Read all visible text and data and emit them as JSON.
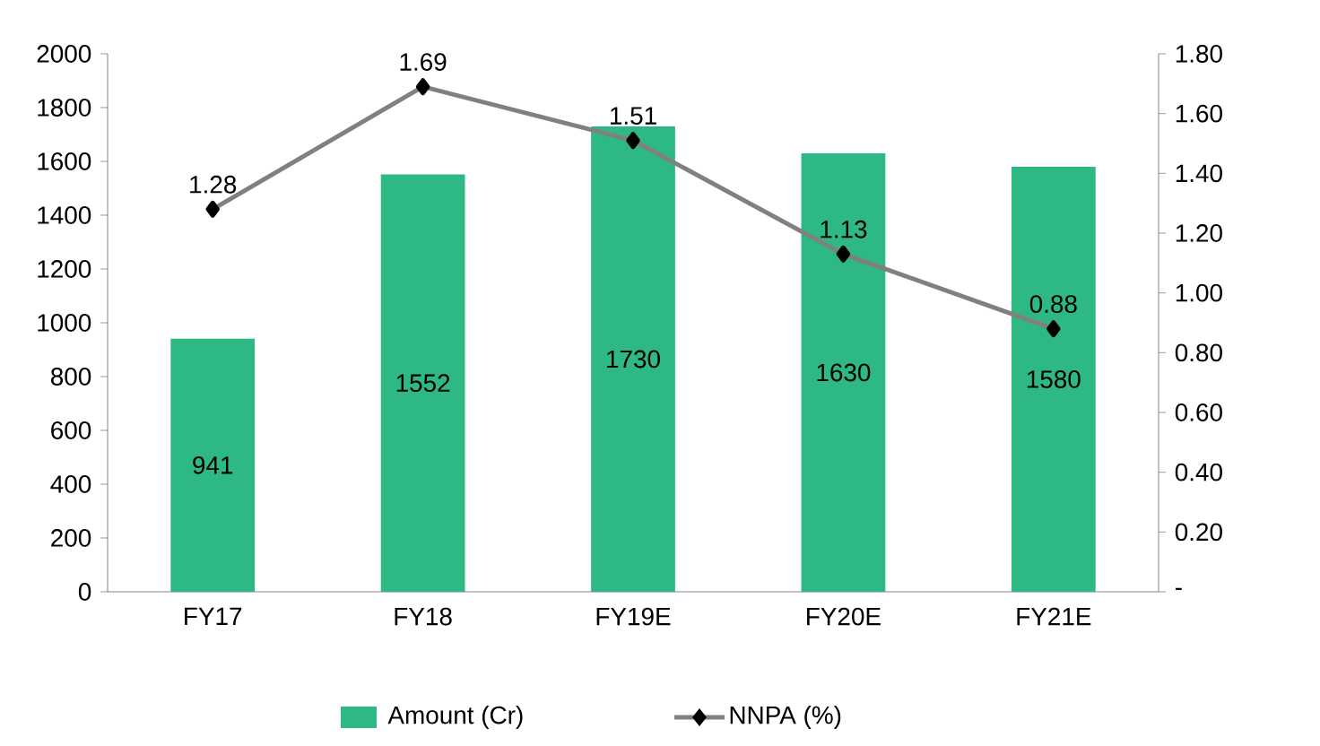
{
  "chart_data": {
    "type": "bar",
    "categories": [
      "FY17",
      "FY18",
      "FY19E",
      "FY20E",
      "FY21E"
    ],
    "series": [
      {
        "name": "Amount (Cr)",
        "color": "#2eb883",
        "values": [
          941,
          1552,
          1730,
          1630,
          1580
        ]
      },
      {
        "name": "NNPA (%)",
        "type": "line",
        "axis": "y2",
        "color": "#808080",
        "marker": "diamond",
        "values": [
          1.28,
          1.69,
          1.51,
          1.13,
          0.88
        ]
      }
    ],
    "ylim": [
      0,
      2000
    ],
    "yticks": [
      0,
      200,
      400,
      600,
      800,
      1000,
      1200,
      1400,
      1600,
      1800,
      2000
    ],
    "y2lim": [
      0,
      1.8
    ],
    "y2ticks": [
      {
        "value": 0,
        "label": "-"
      },
      {
        "value": 0.2,
        "label": "0.20"
      },
      {
        "value": 0.4,
        "label": "0.40"
      },
      {
        "value": 0.6,
        "label": "0.60"
      },
      {
        "value": 0.8,
        "label": "0.80"
      },
      {
        "value": 1.0,
        "label": "1.00"
      },
      {
        "value": 1.2,
        "label": "1.20"
      },
      {
        "value": 1.4,
        "label": "1.40"
      },
      {
        "value": 1.6,
        "label": "1.60"
      },
      {
        "value": 1.8,
        "label": "1.80"
      }
    ],
    "data_labels": true,
    "legend": "bottom",
    "grid": false
  }
}
